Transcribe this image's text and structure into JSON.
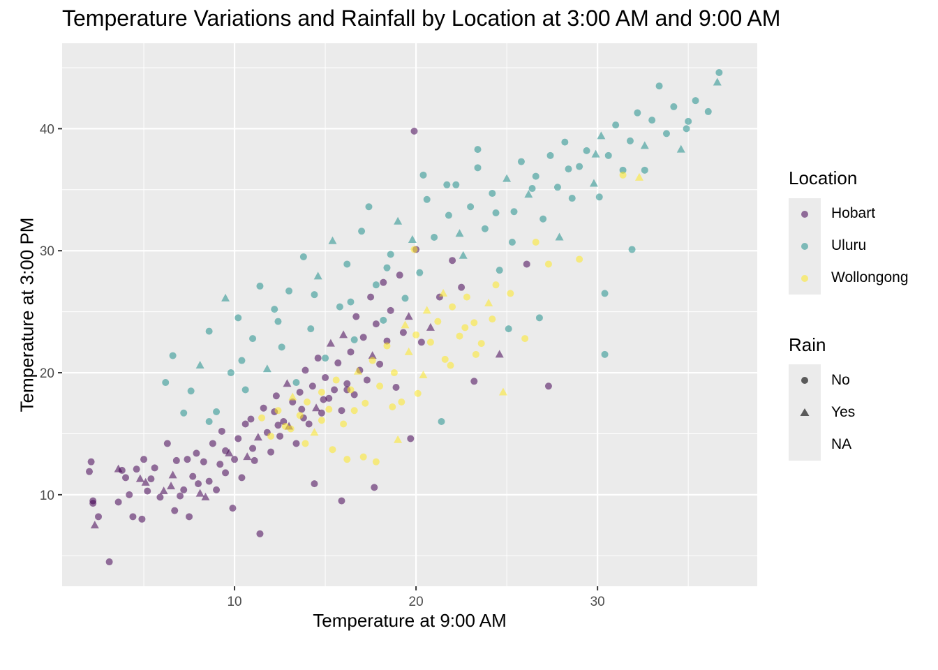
{
  "chart_data": {
    "type": "scatter",
    "title": "Temperature Variations and Rainfall by Location at 3:00 AM and 9:00 AM",
    "xlabel": "Temperature at 9:00 AM",
    "ylabel": "Temperature at 3:00 PM",
    "xlim": [
      0.5,
      38.8
    ],
    "ylim": [
      2.5,
      47.0
    ],
    "x_ticks": [
      10,
      20,
      30
    ],
    "y_ticks": [
      10,
      20,
      30,
      40
    ],
    "grid": true,
    "legend_position": "right",
    "marker_opacity": 0.55,
    "color_legend": {
      "title": "Location",
      "entries": [
        {
          "label": "Hobart",
          "color": "#440154"
        },
        {
          "label": "Uluru",
          "color": "#21908C"
        },
        {
          "label": "Wollongong",
          "color": "#FDE725"
        }
      ]
    },
    "shape_legend": {
      "title": "Rain",
      "entries": [
        {
          "label": "No",
          "shape": "circle"
        },
        {
          "label": "Yes",
          "shape": "triangle"
        },
        {
          "label": "NA",
          "shape": "none"
        }
      ]
    },
    "series": [
      {
        "name": "Hobart",
        "color": "#440154",
        "points": [
          [
            2.0,
            11.9
          ],
          [
            2.1,
            12.7
          ],
          [
            2.2,
            9.5
          ],
          [
            2.2,
            9.3
          ],
          [
            2.3,
            7.5
          ],
          [
            2.5,
            8.2
          ],
          [
            3.1,
            4.5
          ],
          [
            3.6,
            12.1
          ],
          [
            3.8,
            12.0
          ],
          [
            4.0,
            11.4
          ],
          [
            4.2,
            10.0
          ],
          [
            4.4,
            8.2
          ],
          [
            4.6,
            12.1
          ],
          [
            4.8,
            11.3
          ],
          [
            4.9,
            8.0
          ],
          [
            5.0,
            12.9
          ],
          [
            5.2,
            10.3
          ],
          [
            5.4,
            11.3
          ],
          [
            5.6,
            12.2
          ],
          [
            5.9,
            9.8
          ],
          [
            6.1,
            10.3
          ],
          [
            6.3,
            14.2
          ],
          [
            6.5,
            10.7
          ],
          [
            6.7,
            8.7
          ],
          [
            6.8,
            12.8
          ],
          [
            7.0,
            9.9
          ],
          [
            7.2,
            10.4
          ],
          [
            7.4,
            12.9
          ],
          [
            7.5,
            8.2
          ],
          [
            7.7,
            11.5
          ],
          [
            7.9,
            13.4
          ],
          [
            8.1,
            10.1
          ],
          [
            8.3,
            12.7
          ],
          [
            8.4,
            9.8
          ],
          [
            8.6,
            11.1
          ],
          [
            8.8,
            14.2
          ],
          [
            9.0,
            10.4
          ],
          [
            9.2,
            12.5
          ],
          [
            9.3,
            15.2
          ],
          [
            9.5,
            11.8
          ],
          [
            9.7,
            13.4
          ],
          [
            9.9,
            8.9
          ],
          [
            10.0,
            12.9
          ],
          [
            10.2,
            14.6
          ],
          [
            10.4,
            11.4
          ],
          [
            10.6,
            15.8
          ],
          [
            10.7,
            13.1
          ],
          [
            10.9,
            16.2
          ],
          [
            11.1,
            12.8
          ],
          [
            11.3,
            14.7
          ],
          [
            11.4,
            6.8
          ],
          [
            11.6,
            17.1
          ],
          [
            11.8,
            15.1
          ],
          [
            12.0,
            13.5
          ],
          [
            12.2,
            16.8
          ],
          [
            12.3,
            18.1
          ],
          [
            12.5,
            14.8
          ],
          [
            12.7,
            16.0
          ],
          [
            12.9,
            19.1
          ],
          [
            13.0,
            15.6
          ],
          [
            13.2,
            17.6
          ],
          [
            13.4,
            14.2
          ],
          [
            13.6,
            18.4
          ],
          [
            13.8,
            16.3
          ],
          [
            13.9,
            20.2
          ],
          [
            14.1,
            15.8
          ],
          [
            14.3,
            18.9
          ],
          [
            14.5,
            17.1
          ],
          [
            14.6,
            21.2
          ],
          [
            14.8,
            16.7
          ],
          [
            15.0,
            19.6
          ],
          [
            15.2,
            17.9
          ],
          [
            15.3,
            22.4
          ],
          [
            15.5,
            18.6
          ],
          [
            15.7,
            20.8
          ],
          [
            15.9,
            16.9
          ],
          [
            16.0,
            23.1
          ],
          [
            16.2,
            19.1
          ],
          [
            16.4,
            21.7
          ],
          [
            16.6,
            18.2
          ],
          [
            16.7,
            24.6
          ],
          [
            16.9,
            20.2
          ],
          [
            17.1,
            22.9
          ],
          [
            17.3,
            19.4
          ],
          [
            17.5,
            26.2
          ],
          [
            17.6,
            21.4
          ],
          [
            17.8,
            24.0
          ],
          [
            18.0,
            20.7
          ],
          [
            18.2,
            27.4
          ],
          [
            18.4,
            22.6
          ],
          [
            18.6,
            25.1
          ],
          [
            18.9,
            18.8
          ],
          [
            19.1,
            28.0
          ],
          [
            19.3,
            23.3
          ],
          [
            19.6,
            24.6
          ],
          [
            19.9,
            39.8
          ],
          [
            20.0,
            30.1
          ],
          [
            20.3,
            22.5
          ],
          [
            20.8,
            23.7
          ],
          [
            21.3,
            26.2
          ],
          [
            22.0,
            29.2
          ],
          [
            22.5,
            27.0
          ],
          [
            23.2,
            19.3
          ],
          [
            24.6,
            21.5
          ],
          [
            26.1,
            28.9
          ],
          [
            27.3,
            18.9
          ],
          [
            15.9,
            9.5
          ],
          [
            14.4,
            10.9
          ],
          [
            17.7,
            10.6
          ],
          [
            19.7,
            14.6
          ],
          [
            3.6,
            9.4
          ],
          [
            5.1,
            11.0
          ],
          [
            6.6,
            11.6
          ],
          [
            8.0,
            10.9
          ],
          [
            9.5,
            13.6
          ],
          [
            11.0,
            13.8
          ],
          [
            12.4,
            15.7
          ],
          [
            13.7,
            17.0
          ],
          [
            14.9,
            17.8
          ],
          [
            16.2,
            18.6
          ]
        ]
      },
      {
        "name": "Uluru",
        "color": "#21908C",
        "points": [
          [
            6.2,
            19.2
          ],
          [
            6.6,
            21.4
          ],
          [
            7.2,
            16.7
          ],
          [
            7.6,
            18.5
          ],
          [
            8.1,
            20.6
          ],
          [
            8.6,
            23.4
          ],
          [
            9.0,
            16.8
          ],
          [
            9.5,
            26.1
          ],
          [
            9.8,
            20.0
          ],
          [
            10.2,
            24.5
          ],
          [
            10.6,
            18.6
          ],
          [
            11.0,
            22.8
          ],
          [
            11.4,
            27.1
          ],
          [
            11.8,
            20.3
          ],
          [
            12.2,
            25.2
          ],
          [
            12.6,
            22.1
          ],
          [
            13.0,
            26.7
          ],
          [
            13.4,
            19.2
          ],
          [
            13.8,
            29.5
          ],
          [
            14.2,
            23.6
          ],
          [
            14.6,
            27.9
          ],
          [
            15.0,
            21.2
          ],
          [
            15.4,
            30.8
          ],
          [
            15.8,
            25.4
          ],
          [
            16.2,
            28.9
          ],
          [
            16.6,
            22.7
          ],
          [
            17.0,
            31.6
          ],
          [
            17.4,
            33.6
          ],
          [
            17.8,
            27.2
          ],
          [
            18.2,
            24.3
          ],
          [
            18.6,
            29.7
          ],
          [
            19.0,
            32.4
          ],
          [
            19.4,
            26.1
          ],
          [
            19.8,
            30.9
          ],
          [
            20.2,
            28.2
          ],
          [
            20.6,
            34.2
          ],
          [
            21.0,
            31.1
          ],
          [
            21.4,
            16.0
          ],
          [
            21.8,
            32.9
          ],
          [
            22.2,
            35.4
          ],
          [
            22.6,
            29.6
          ],
          [
            23.0,
            33.6
          ],
          [
            23.4,
            36.8
          ],
          [
            23.8,
            31.8
          ],
          [
            24.2,
            34.7
          ],
          [
            24.6,
            28.4
          ],
          [
            25.0,
            35.9
          ],
          [
            25.4,
            33.2
          ],
          [
            25.8,
            37.3
          ],
          [
            26.2,
            34.6
          ],
          [
            26.6,
            36.1
          ],
          [
            27.0,
            32.6
          ],
          [
            27.4,
            37.8
          ],
          [
            27.8,
            35.2
          ],
          [
            28.2,
            38.9
          ],
          [
            28.6,
            34.3
          ],
          [
            29.0,
            36.9
          ],
          [
            29.4,
            38.2
          ],
          [
            29.8,
            35.5
          ],
          [
            30.2,
            39.4
          ],
          [
            30.4,
            26.5
          ],
          [
            30.6,
            37.8
          ],
          [
            31.0,
            40.3
          ],
          [
            31.4,
            36.6
          ],
          [
            31.8,
            39.0
          ],
          [
            31.9,
            30.1
          ],
          [
            32.2,
            41.3
          ],
          [
            32.6,
            38.6
          ],
          [
            33.0,
            40.7
          ],
          [
            33.4,
            43.5
          ],
          [
            33.8,
            39.6
          ],
          [
            34.2,
            41.8
          ],
          [
            34.6,
            38.3
          ],
          [
            35.0,
            40.6
          ],
          [
            35.4,
            42.3
          ],
          [
            36.1,
            41.4
          ],
          [
            36.6,
            43.8
          ],
          [
            36.7,
            44.6
          ],
          [
            30.4,
            21.5
          ],
          [
            26.8,
            24.5
          ],
          [
            25.1,
            23.6
          ],
          [
            23.4,
            38.3
          ],
          [
            20.4,
            36.2
          ],
          [
            21.7,
            35.4
          ],
          [
            25.3,
            30.7
          ],
          [
            27.9,
            31.1
          ],
          [
            30.1,
            34.4
          ],
          [
            32.6,
            36.6
          ],
          [
            8.6,
            16.0
          ],
          [
            10.4,
            21.0
          ],
          [
            12.4,
            24.2
          ],
          [
            14.4,
            26.4
          ],
          [
            16.4,
            25.8
          ],
          [
            18.4,
            28.6
          ],
          [
            22.4,
            31.4
          ],
          [
            24.4,
            33.1
          ],
          [
            26.4,
            35.1
          ],
          [
            28.4,
            36.7
          ],
          [
            29.9,
            37.9
          ],
          [
            34.9,
            40.0
          ]
        ]
      },
      {
        "name": "Wollongong",
        "color": "#FDE725",
        "points": [
          [
            11.5,
            16.3
          ],
          [
            12.0,
            14.8
          ],
          [
            12.4,
            16.9
          ],
          [
            12.8,
            15.6
          ],
          [
            13.2,
            18.0
          ],
          [
            13.6,
            16.5
          ],
          [
            14.0,
            17.6
          ],
          [
            14.4,
            15.1
          ],
          [
            14.8,
            18.4
          ],
          [
            15.2,
            17.0
          ],
          [
            15.6,
            19.4
          ],
          [
            16.0,
            15.8
          ],
          [
            16.4,
            18.6
          ],
          [
            16.8,
            20.1
          ],
          [
            17.2,
            17.5
          ],
          [
            17.6,
            21.0
          ],
          [
            18.0,
            18.9
          ],
          [
            18.4,
            22.2
          ],
          [
            18.8,
            20.0
          ],
          [
            19.2,
            17.6
          ],
          [
            19.6,
            21.7
          ],
          [
            20.0,
            23.1
          ],
          [
            20.4,
            19.8
          ],
          [
            20.8,
            22.5
          ],
          [
            21.2,
            24.2
          ],
          [
            21.6,
            21.1
          ],
          [
            22.0,
            25.4
          ],
          [
            22.4,
            23.0
          ],
          [
            22.8,
            26.2
          ],
          [
            23.2,
            24.1
          ],
          [
            23.6,
            22.4
          ],
          [
            24.0,
            25.7
          ],
          [
            24.4,
            27.2
          ],
          [
            24.8,
            18.4
          ],
          [
            25.2,
            26.5
          ],
          [
            26.0,
            22.8
          ],
          [
            26.6,
            30.7
          ],
          [
            27.3,
            28.9
          ],
          [
            29.0,
            29.3
          ],
          [
            31.4,
            36.2
          ],
          [
            32.3,
            36.0
          ],
          [
            19.9,
            30.1
          ],
          [
            17.1,
            13.1
          ],
          [
            15.4,
            13.7
          ],
          [
            13.9,
            14.2
          ],
          [
            17.8,
            12.7
          ],
          [
            19.0,
            14.5
          ],
          [
            16.2,
            12.9
          ],
          [
            22.7,
            23.7
          ],
          [
            21.5,
            26.5
          ],
          [
            20.1,
            18.3
          ],
          [
            18.7,
            17.2
          ],
          [
            21.9,
            20.6
          ],
          [
            23.3,
            21.5
          ],
          [
            24.2,
            24.4
          ],
          [
            16.6,
            16.9
          ],
          [
            14.8,
            16.1
          ],
          [
            13.1,
            15.4
          ],
          [
            20.6,
            25.1
          ],
          [
            19.4,
            23.9
          ]
        ]
      }
    ]
  }
}
